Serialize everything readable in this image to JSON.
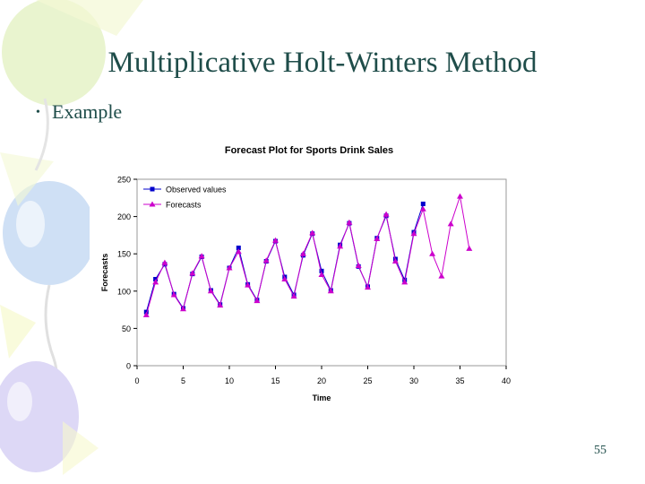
{
  "slide": {
    "title": "Multiplicative Holt-Winters Method",
    "bullet": "Example",
    "bullet_symbol": "•",
    "page_number": "55"
  },
  "colors": {
    "title_text": "#1f4d4a",
    "observed": "#0000cc",
    "forecast": "#cc00cc",
    "decor_balloons": [
      "#cfe0f5",
      "#e9f4cf",
      "#ffffff",
      "#ddd8f6",
      "#f5f8c8"
    ]
  },
  "chart_data": {
    "type": "line",
    "title": "Forecast Plot for Sports Drink Sales",
    "xlabel": "Time",
    "ylabel": "Forecasts",
    "xlim": [
      0,
      40
    ],
    "ylim": [
      0,
      250
    ],
    "x_ticks": [
      0,
      5,
      10,
      15,
      20,
      25,
      30,
      35,
      40
    ],
    "y_ticks": [
      0,
      50,
      100,
      150,
      200,
      250
    ],
    "grid": false,
    "legend_position": "top-left",
    "series": [
      {
        "name": "Observed values",
        "color": "#0000cc",
        "marker": "square",
        "x": [
          1,
          2,
          3,
          4,
          5,
          6,
          7,
          8,
          9,
          10,
          11,
          12,
          13,
          14,
          15,
          16,
          17,
          18,
          19,
          20,
          21,
          22,
          23,
          24,
          25,
          26,
          27,
          28,
          29,
          30,
          31
        ],
        "values": [
          72,
          116,
          136,
          96,
          77,
          123,
          146,
          101,
          82,
          131,
          158,
          109,
          88,
          140,
          167,
          119,
          95,
          148,
          177,
          127,
          101,
          162,
          191,
          133,
          106,
          171,
          201,
          143,
          115,
          179,
          217
        ]
      },
      {
        "name": "Forecasts",
        "color": "#cc00cc",
        "marker": "triangle",
        "x": [
          1,
          2,
          3,
          4,
          5,
          6,
          7,
          8,
          9,
          10,
          11,
          12,
          13,
          14,
          15,
          16,
          17,
          18,
          19,
          20,
          21,
          22,
          23,
          24,
          25,
          26,
          27,
          28,
          29,
          30,
          31,
          32,
          33,
          34,
          35,
          36
        ],
        "values": [
          68,
          112,
          138,
          95,
          76,
          124,
          147,
          100,
          81,
          131,
          153,
          108,
          87,
          141,
          168,
          116,
          93,
          150,
          178,
          122,
          100,
          160,
          192,
          134,
          105,
          170,
          203,
          140,
          112,
          177,
          210,
          150,
          120,
          190,
          227,
          157
        ]
      }
    ]
  }
}
